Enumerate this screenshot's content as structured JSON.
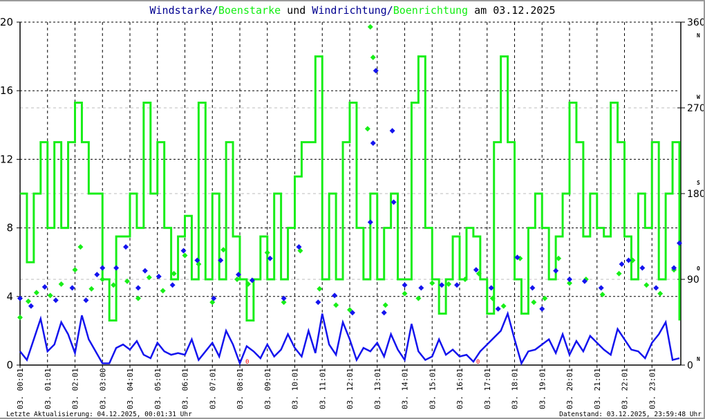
{
  "title": {
    "part1": "Windstarke",
    "sep1": "/",
    "part2": "Boenstarke",
    "mid": " und ",
    "part3": "Windrichtung",
    "sep2": "/",
    "part4": "Boenrichtung",
    "suffix": " am 03.12.2025"
  },
  "footer": {
    "left": "Letzte Aktualisierung: 04.12.2025, 00:01:31 Uhr",
    "right": "Datenstand: 03.12.2025, 23:59:48 Uhr"
  },
  "colors": {
    "wind": "#1414ee",
    "gust": "#18ee18",
    "grid": "#000000",
    "grid_dir": "#bbbbbb",
    "calm": "#ff0000"
  },
  "chart_data": {
    "type": "line",
    "title": "Windstarke/Boenstarke und Windrichtung/Boenrichtung am 03.12.2025",
    "x_range_hours": [
      0,
      24
    ],
    "y_left": {
      "range": [
        0,
        20
      ],
      "ticks": [
        0,
        4,
        8,
        12,
        16,
        20
      ]
    },
    "y_right": {
      "range": [
        0,
        360
      ],
      "ticks": [
        0,
        90,
        180,
        270,
        360
      ],
      "compass": [
        {
          "deg": 0,
          "label": "N"
        },
        {
          "deg": 90,
          "label": "O"
        },
        {
          "deg": 180,
          "label": "S"
        },
        {
          "deg": 270,
          "label": "W"
        },
        {
          "deg": 360,
          "label": "N"
        }
      ]
    },
    "x_tick_labels": [
      "03. 00:01",
      "03. 01:01",
      "03. 02:01",
      "03. 03:00",
      "03. 04:01",
      "03. 05:01",
      "03. 06:01",
      "03. 07:01",
      "03. 08:01",
      "03. 09:01",
      "03. 10:01",
      "03. 11:01",
      "03. 12:01",
      "03. 13:01",
      "03. 14:01",
      "03. 15:01",
      "03. 16:01",
      "03. 17:01",
      "03. 18:01",
      "03. 19:01",
      "03. 20:01",
      "03. 21:01",
      "03. 22:01",
      "03. 23:01"
    ],
    "calm_markers": [
      {
        "hour": 8.1,
        "label": "0"
      },
      {
        "hour": 16.5,
        "label": "0"
      }
    ],
    "series": [
      {
        "name": "Boenstarke",
        "axis": "left",
        "style": "step-line",
        "values": [
          10,
          6,
          10,
          13,
          8,
          13,
          8,
          13,
          15.3,
          13,
          10,
          10,
          5,
          2.6,
          7.5,
          7.5,
          10,
          8,
          15.3,
          10,
          13,
          8,
          5,
          7.5,
          8.7,
          5,
          15.3,
          5,
          10,
          5,
          13,
          7.5,
          5,
          2.6,
          5,
          7.5,
          5,
          10,
          5,
          8,
          11,
          13,
          13,
          18,
          5,
          10,
          5,
          13,
          15.3,
          8,
          5,
          10,
          5,
          8,
          10,
          5,
          5,
          15.3,
          18,
          8,
          5,
          3,
          5,
          7.5,
          5,
          8,
          7.5,
          5,
          3,
          13,
          18,
          13,
          5,
          3,
          8,
          10,
          8,
          5,
          7.5,
          10,
          15.3,
          13,
          7.5,
          10,
          8,
          7.5,
          15.3,
          13,
          7.5,
          5,
          10,
          8,
          13,
          5,
          10,
          13,
          2.6
        ]
      },
      {
        "name": "Windstarke",
        "axis": "left",
        "style": "line",
        "values": [
          0.8,
          0.3,
          1.5,
          2.7,
          0.8,
          1.2,
          2.5,
          1.8,
          0.7,
          2.9,
          1.5,
          0.8,
          0.1,
          0.1,
          1.0,
          1.2,
          0.9,
          1.4,
          0.6,
          0.4,
          1.3,
          0.8,
          0.6,
          0.7,
          0.6,
          1.5,
          0.3,
          0.8,
          1.3,
          0.5,
          2.0,
          1.2,
          0.1,
          1.1,
          0.8,
          0.4,
          1.2,
          0.5,
          0.9,
          1.8,
          1.0,
          0.5,
          2.0,
          0.7,
          3.0,
          1.2,
          0.6,
          2.5,
          1.5,
          0.3,
          1.0,
          0.8,
          1.3,
          0.5,
          1.8,
          0.9,
          0.3,
          2.4,
          0.8,
          0.3,
          0.5,
          1.5,
          0.6,
          0.9,
          0.5,
          0.6,
          0.2,
          0.8,
          1.2,
          1.6,
          2.0,
          3.0,
          1.5,
          0.1,
          0.8,
          0.9,
          1.2,
          1.5,
          0.7,
          1.8,
          0.6,
          1.4,
          0.8,
          1.7,
          1.3,
          0.9,
          0.6,
          2.1,
          1.5,
          0.9,
          0.8,
          0.4,
          1.3,
          1.8,
          2.5,
          0.3,
          0.4
        ]
      },
      {
        "name": "Boenrichtung",
        "axis": "right",
        "style": "diamond",
        "points": [
          [
            0.0,
            50
          ],
          [
            0.3,
            67
          ],
          [
            0.6,
            76
          ],
          [
            1.1,
            73
          ],
          [
            1.5,
            85
          ],
          [
            2.0,
            100
          ],
          [
            2.2,
            124
          ],
          [
            2.6,
            80
          ],
          [
            3.0,
            90
          ],
          [
            3.4,
            84
          ],
          [
            3.9,
            88
          ],
          [
            4.3,
            70
          ],
          [
            4.7,
            92
          ],
          [
            5.2,
            78
          ],
          [
            5.6,
            96
          ],
          [
            6.0,
            115
          ],
          [
            6.5,
            106
          ],
          [
            7.0,
            66
          ],
          [
            7.4,
            121
          ],
          [
            7.9,
            90
          ],
          [
            8.3,
            85
          ],
          [
            9.0,
            118
          ],
          [
            9.6,
            66
          ],
          [
            10.2,
            120
          ],
          [
            10.9,
            80
          ],
          [
            11.5,
            63
          ],
          [
            12.0,
            58
          ],
          [
            12.65,
            248
          ],
          [
            12.75,
            355
          ],
          [
            12.85,
            323
          ],
          [
            13.3,
            63
          ],
          [
            14.0,
            75
          ],
          [
            14.5,
            70
          ],
          [
            15.0,
            86
          ],
          [
            15.6,
            85
          ],
          [
            16.2,
            90
          ],
          [
            16.7,
            96
          ],
          [
            17.2,
            70
          ],
          [
            17.6,
            62
          ],
          [
            18.2,
            112
          ],
          [
            18.7,
            66
          ],
          [
            19.1,
            70
          ],
          [
            19.6,
            112
          ],
          [
            20.0,
            86
          ],
          [
            20.6,
            90
          ],
          [
            21.2,
            74
          ],
          [
            21.8,
            96
          ],
          [
            22.3,
            110
          ],
          [
            22.8,
            84
          ],
          [
            23.3,
            75
          ],
          [
            23.8,
            100
          ]
        ]
      },
      {
        "name": "Windrichtung",
        "axis": "right",
        "style": "diamond",
        "points": [
          [
            0.0,
            70
          ],
          [
            0.4,
            62
          ],
          [
            0.9,
            82
          ],
          [
            1.3,
            68
          ],
          [
            1.9,
            81
          ],
          [
            2.4,
            68
          ],
          [
            2.8,
            95
          ],
          [
            3.0,
            102
          ],
          [
            3.5,
            102
          ],
          [
            3.85,
            124
          ],
          [
            4.3,
            81
          ],
          [
            4.55,
            99
          ],
          [
            5.05,
            93
          ],
          [
            5.55,
            84
          ],
          [
            5.95,
            120
          ],
          [
            6.45,
            110
          ],
          [
            7.05,
            70
          ],
          [
            7.3,
            110
          ],
          [
            7.95,
            95
          ],
          [
            8.45,
            89
          ],
          [
            9.1,
            112
          ],
          [
            9.6,
            70
          ],
          [
            10.15,
            124
          ],
          [
            10.85,
            66
          ],
          [
            11.45,
            73
          ],
          [
            12.1,
            55
          ],
          [
            12.75,
            150
          ],
          [
            12.85,
            233
          ],
          [
            12.95,
            309
          ],
          [
            13.25,
            55
          ],
          [
            13.55,
            246
          ],
          [
            13.6,
            171
          ],
          [
            14.0,
            84
          ],
          [
            14.6,
            81
          ],
          [
            15.35,
            84
          ],
          [
            15.9,
            84
          ],
          [
            16.6,
            100
          ],
          [
            17.15,
            81
          ],
          [
            17.4,
            59
          ],
          [
            18.1,
            113
          ],
          [
            18.65,
            81
          ],
          [
            19.0,
            59
          ],
          [
            19.5,
            99
          ],
          [
            20.0,
            90
          ],
          [
            20.55,
            88
          ],
          [
            21.15,
            81
          ],
          [
            21.9,
            106
          ],
          [
            22.15,
            110
          ],
          [
            22.65,
            102
          ],
          [
            23.15,
            81
          ],
          [
            23.8,
            102
          ],
          [
            24.0,
            128
          ]
        ]
      }
    ]
  }
}
